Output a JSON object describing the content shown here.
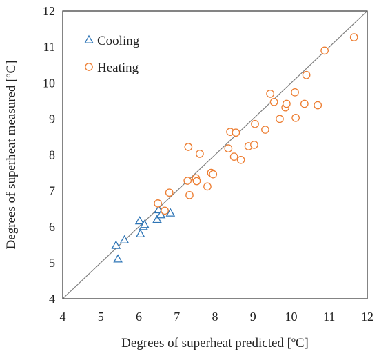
{
  "chart_data": {
    "type": "scatter",
    "title": "",
    "xlabel": "Degrees of superheat predicted [ºC]",
    "ylabel": "Degrees of superheat measured [ºC]",
    "xlim": [
      4,
      12
    ],
    "ylim": [
      4,
      12
    ],
    "xticks": [
      "4",
      "5",
      "6",
      "7",
      "8",
      "9",
      "10",
      "11",
      "12"
    ],
    "yticks": [
      "4",
      "5",
      "6",
      "7",
      "8",
      "9",
      "10",
      "11",
      "12"
    ],
    "grid": false,
    "legend_position": "top-left",
    "reference_line": {
      "x": [
        4,
        12
      ],
      "y": [
        4,
        12
      ],
      "color": "#7f7f7f"
    },
    "series": [
      {
        "name": "Cooling",
        "marker": "triangle",
        "color": "#2e75b6",
        "points": [
          [
            5.4,
            5.48
          ],
          [
            5.45,
            5.1
          ],
          [
            5.62,
            5.63
          ],
          [
            6.02,
            6.16
          ],
          [
            6.04,
            5.8
          ],
          [
            6.12,
            6.0
          ],
          [
            6.15,
            6.06
          ],
          [
            6.48,
            6.2
          ],
          [
            6.52,
            6.47
          ],
          [
            6.58,
            6.33
          ],
          [
            6.83,
            6.38
          ]
        ]
      },
      {
        "name": "Heating",
        "marker": "circle",
        "color": "#ed7d31",
        "points": [
          [
            6.5,
            6.65
          ],
          [
            6.68,
            6.45
          ],
          [
            6.8,
            6.95
          ],
          [
            7.28,
            7.28
          ],
          [
            7.3,
            8.22
          ],
          [
            7.33,
            6.88
          ],
          [
            7.5,
            7.35
          ],
          [
            7.52,
            7.27
          ],
          [
            7.6,
            8.03
          ],
          [
            7.8,
            7.12
          ],
          [
            7.9,
            7.5
          ],
          [
            7.95,
            7.46
          ],
          [
            8.35,
            8.18
          ],
          [
            8.4,
            8.64
          ],
          [
            8.5,
            7.95
          ],
          [
            8.55,
            8.62
          ],
          [
            8.68,
            7.86
          ],
          [
            8.88,
            8.24
          ],
          [
            9.03,
            8.28
          ],
          [
            9.05,
            8.86
          ],
          [
            9.32,
            8.7
          ],
          [
            9.45,
            9.7
          ],
          [
            9.55,
            9.47
          ],
          [
            9.7,
            9.0
          ],
          [
            9.85,
            9.32
          ],
          [
            9.88,
            9.42
          ],
          [
            10.1,
            9.74
          ],
          [
            10.12,
            9.03
          ],
          [
            10.35,
            9.42
          ],
          [
            10.4,
            10.22
          ],
          [
            10.7,
            9.38
          ],
          [
            10.88,
            10.9
          ],
          [
            11.65,
            11.27
          ]
        ]
      }
    ]
  }
}
